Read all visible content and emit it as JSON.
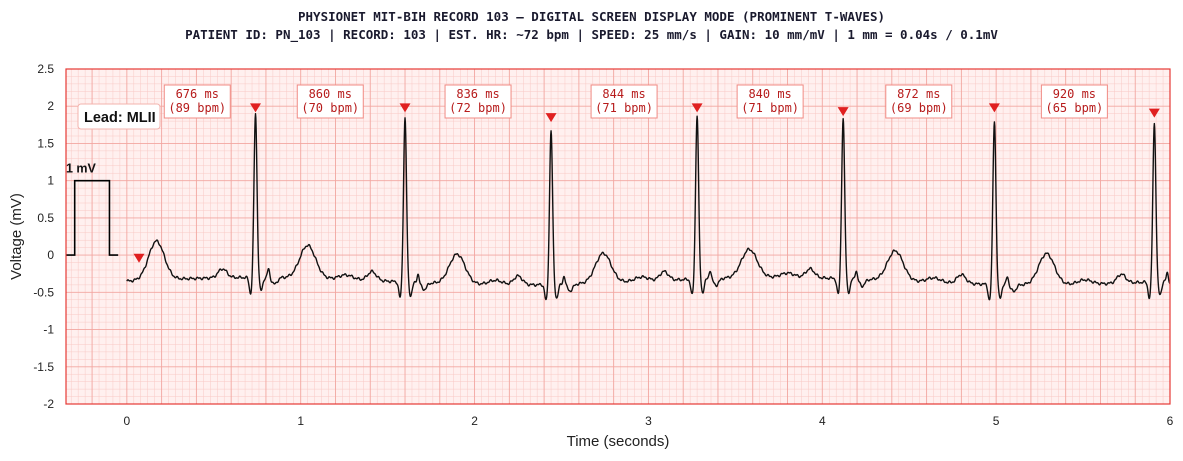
{
  "titles": {
    "line1": "PHYSIONET MIT-BIH RECORD 103 — DIGITAL SCREEN DISPLAY MODE (PROMINENT T-WAVES)",
    "line2": "PATIENT ID: PN_103  |  RECORD: 103  |  EST. HR: ~72 bpm  |  SPEED: 25 mm/s  |  GAIN: 10 mm/mV  |  1 mm = 0.04s / 0.1mV"
  },
  "colors": {
    "background": "#fff0ef",
    "minor_grid": "#f9c9c5",
    "major_grid": "#f2a6a0",
    "frame": "#e53935",
    "trace": "#111111",
    "marker": "#e02020",
    "annotation_text": "#b71c1c"
  },
  "chart_data": {
    "type": "line",
    "xlabel": "Time (seconds)",
    "ylabel": "Voltage (mV)",
    "xlim": [
      -0.35,
      6.0
    ],
    "ylim": [
      -2.0,
      2.5
    ],
    "x_ticks": [
      0,
      1,
      2,
      3,
      4,
      5,
      6
    ],
    "y_ticks": [
      -2,
      -1.5,
      -1,
      -0.5,
      0,
      0.5,
      1,
      1.5,
      2,
      2.5
    ],
    "x_tick_labels": [
      "0",
      "1",
      "2",
      "3",
      "4",
      "5",
      "6"
    ],
    "y_tick_labels": [
      "-2",
      "-1.5",
      "-1",
      "-0.5",
      "0",
      "0.5",
      "1",
      "1.5",
      "2",
      "2.5"
    ],
    "grid": "on",
    "lead_label": "Lead: MLII",
    "calibration": {
      "label": "1 mV",
      "amplitude_mv": 1.0,
      "t_start": -0.35,
      "t_rise": -0.3,
      "t_fall": -0.1,
      "t_end": -0.05
    },
    "r_peaks": [
      {
        "t": 0.07,
        "v": -0.17
      },
      {
        "t": 0.74,
        "v": 1.85
      },
      {
        "t": 1.6,
        "v": 1.85
      },
      {
        "t": 2.44,
        "v": 1.72
      },
      {
        "t": 3.28,
        "v": 1.85
      },
      {
        "t": 4.12,
        "v": 1.8
      },
      {
        "t": 4.99,
        "v": 1.85
      },
      {
        "t": 5.91,
        "v": 1.78
      }
    ],
    "rr_annotations": [
      {
        "t": 0.405,
        "ms": "676 ms",
        "bpm": "(89 bpm)"
      },
      {
        "t": 1.17,
        "ms": "860 ms",
        "bpm": "(70 bpm)"
      },
      {
        "t": 2.02,
        "ms": "836 ms",
        "bpm": "(72 bpm)"
      },
      {
        "t": 2.86,
        "ms": "844 ms",
        "bpm": "(71 bpm)"
      },
      {
        "t": 3.7,
        "ms": "840 ms",
        "bpm": "(71 bpm)"
      },
      {
        "t": 4.555,
        "ms": "872 ms",
        "bpm": "(69 bpm)"
      },
      {
        "t": 5.45,
        "ms": "920 ms",
        "bpm": "(65 bpm)"
      }
    ],
    "trace": {
      "t_start": 0.0,
      "t_end": 6.0,
      "baseline_mv": -0.35,
      "beats": [
        {
          "r": 0.74,
          "amp": 1.85,
          "t_amp": 0.44
        },
        {
          "r": 1.6,
          "amp": 1.85,
          "t_amp": 0.4
        },
        {
          "r": 2.44,
          "amp": 1.72,
          "t_amp": 0.4
        },
        {
          "r": 3.28,
          "amp": 1.85,
          "t_amp": 0.38
        },
        {
          "r": 4.12,
          "amp": 1.8,
          "t_amp": 0.4
        },
        {
          "r": 4.99,
          "amp": 1.85,
          "t_amp": 0.42
        },
        {
          "r": 5.91,
          "amp": 1.78,
          "t_amp": 0.4
        }
      ],
      "initial_t_wave": {
        "t": 0.17,
        "amp": 0.52
      }
    }
  }
}
